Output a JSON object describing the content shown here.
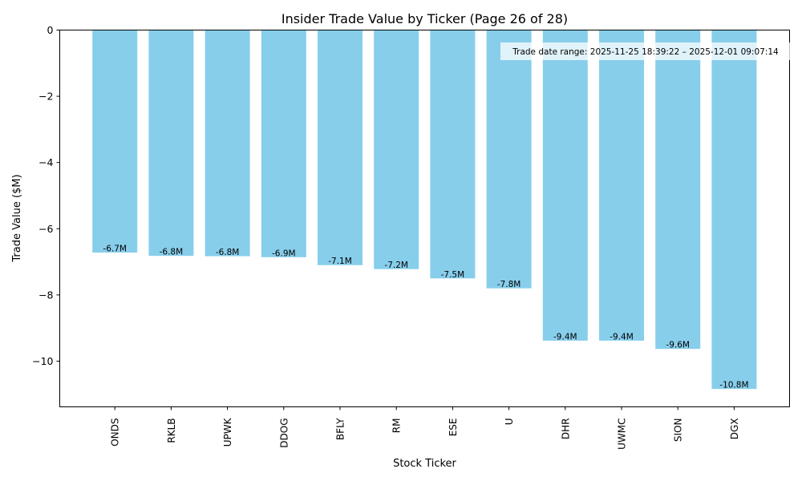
{
  "chart_data": {
    "type": "bar",
    "title": "Insider Trade Value by Ticker (Page 26 of 28)",
    "xlabel": "Stock Ticker",
    "ylabel": "Trade Value ($M)",
    "categories": [
      "ONDS",
      "RKLB",
      "UPWK",
      "DDOG",
      "BFLY",
      "RM",
      "ESE",
      "U",
      "DHR",
      "UWMC",
      "SION",
      "DGX"
    ],
    "values": [
      -6.72,
      -6.82,
      -6.83,
      -6.86,
      -7.1,
      -7.22,
      -7.5,
      -7.8,
      -9.38,
      -9.38,
      -9.63,
      -10.84
    ],
    "data_labels": [
      "-6.7M",
      "-6.8M",
      "-6.8M",
      "-6.9M",
      "-7.1M",
      "-7.2M",
      "-7.5M",
      "-7.8M",
      "-9.4M",
      "-9.4M",
      "-9.6M",
      "-10.8M"
    ],
    "ylim": [
      -11.38,
      0
    ],
    "yticks": [
      0,
      -2,
      -4,
      -6,
      -8,
      -10
    ],
    "ytick_labels": [
      "0",
      "−2",
      "−4",
      "−6",
      "−8",
      "−10"
    ],
    "bar_color": "#87ceeb",
    "grid": false,
    "annotation": "Trade date range: 2025-11-25 18:39:22 – 2025-12-01 09:07:14",
    "annotation_position": "top-right"
  }
}
